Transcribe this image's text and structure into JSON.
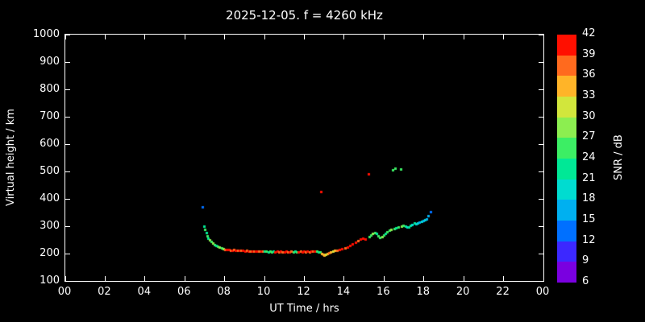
{
  "title": "2025-12-05. f = 4260 kHz",
  "chart_data": {
    "type": "scatter",
    "title": "2025-12-05. f = 4260 kHz",
    "xlabel": "UT Time / hrs",
    "ylabel": "Virtual height / km",
    "xlim": [
      0,
      24
    ],
    "ylim": [
      100,
      1000
    ],
    "grid": false,
    "background": "#000000",
    "marker": "square",
    "marker_size_px": 3,
    "x_tick_values": [
      0,
      2,
      4,
      6,
      8,
      10,
      12,
      14,
      16,
      18,
      20,
      22,
      24
    ],
    "x_tick_labels": [
      "00",
      "02",
      "04",
      "06",
      "08",
      "10",
      "12",
      "14",
      "16",
      "18",
      "20",
      "22",
      "00"
    ],
    "y_tick_values": [
      100,
      200,
      300,
      400,
      500,
      600,
      700,
      800,
      900,
      1000
    ],
    "colorbar": {
      "label": "SNR / dB",
      "min": 6,
      "max": 42,
      "tick_values": [
        6,
        9,
        12,
        15,
        18,
        21,
        24,
        27,
        30,
        33,
        36,
        39,
        42
      ],
      "colors": [
        "#7a00e0",
        "#3c28ff",
        "#0070ff",
        "#00b0f0",
        "#00dcd0",
        "#00e896",
        "#3cee64",
        "#8cee50",
        "#d2e63c",
        "#ffb428",
        "#ff6a1e",
        "#ff0f00"
      ]
    },
    "points_format": [
      "ut_hours",
      "virtual_height_km",
      "snr_db"
    ],
    "points": [
      [
        6.92,
        370,
        13
      ],
      [
        7.0,
        298,
        22
      ],
      [
        7.04,
        286,
        24
      ],
      [
        7.09,
        274,
        21
      ],
      [
        7.14,
        263,
        25
      ],
      [
        7.2,
        255,
        23
      ],
      [
        7.27,
        248,
        27
      ],
      [
        7.34,
        242,
        24
      ],
      [
        7.42,
        236,
        28
      ],
      [
        7.5,
        231,
        25
      ],
      [
        7.59,
        227,
        22
      ],
      [
        7.68,
        224,
        26
      ],
      [
        7.77,
        221,
        29
      ],
      [
        7.86,
        219,
        24
      ],
      [
        7.95,
        217,
        27
      ],
      [
        8.04,
        214,
        37
      ],
      [
        8.13,
        212,
        39
      ],
      [
        8.22,
        213,
        41
      ],
      [
        8.31,
        211,
        38
      ],
      [
        8.4,
        210,
        40
      ],
      [
        8.49,
        212,
        36
      ],
      [
        8.58,
        210,
        41
      ],
      [
        8.67,
        211,
        38
      ],
      [
        8.76,
        209,
        40
      ],
      [
        8.85,
        210,
        37
      ],
      [
        8.94,
        209,
        41
      ],
      [
        9.03,
        208,
        39
      ],
      [
        9.12,
        209,
        36
      ],
      [
        9.21,
        207,
        40
      ],
      [
        9.3,
        208,
        38
      ],
      [
        9.39,
        207,
        41
      ],
      [
        9.48,
        208,
        37
      ],
      [
        9.57,
        206,
        40
      ],
      [
        9.66,
        207,
        39
      ],
      [
        9.75,
        206,
        36
      ],
      [
        9.84,
        207,
        41
      ],
      [
        9.93,
        206,
        38
      ],
      [
        10.02,
        206,
        23
      ],
      [
        10.11,
        207,
        25
      ],
      [
        10.2,
        205,
        22
      ],
      [
        10.29,
        206,
        26
      ],
      [
        10.38,
        205,
        24
      ],
      [
        10.47,
        206,
        21
      ],
      [
        10.56,
        205,
        39
      ],
      [
        10.65,
        206,
        41
      ],
      [
        10.74,
        205,
        38
      ],
      [
        10.83,
        206,
        40
      ],
      [
        10.92,
        205,
        37
      ],
      [
        11.01,
        205,
        41
      ],
      [
        11.1,
        206,
        39
      ],
      [
        11.19,
        205,
        36
      ],
      [
        11.28,
        205,
        40
      ],
      [
        11.37,
        206,
        38
      ],
      [
        11.46,
        205,
        24
      ],
      [
        11.55,
        206,
        22
      ],
      [
        11.64,
        205,
        26
      ],
      [
        11.73,
        205,
        40
      ],
      [
        11.82,
        206,
        38
      ],
      [
        11.91,
        205,
        41
      ],
      [
        12.0,
        206,
        39
      ],
      [
        12.09,
        205,
        37
      ],
      [
        12.18,
        206,
        41
      ],
      [
        12.27,
        205,
        38
      ],
      [
        12.36,
        206,
        40
      ],
      [
        12.45,
        206,
        36
      ],
      [
        12.54,
        207,
        39
      ],
      [
        12.63,
        206,
        25
      ],
      [
        12.72,
        205,
        23
      ],
      [
        12.81,
        203,
        26
      ],
      [
        12.85,
        425,
        40
      ],
      [
        12.9,
        199,
        34
      ],
      [
        12.96,
        195,
        33
      ],
      [
        13.03,
        193,
        35
      ],
      [
        13.11,
        195,
        32
      ],
      [
        13.19,
        198,
        34
      ],
      [
        13.27,
        201,
        36
      ],
      [
        13.35,
        204,
        33
      ],
      [
        13.44,
        207,
        31
      ],
      [
        13.54,
        209,
        34
      ],
      [
        13.66,
        211,
        37
      ],
      [
        13.79,
        213,
        39
      ],
      [
        13.92,
        215,
        41
      ],
      [
        14.05,
        218,
        38
      ],
      [
        14.18,
        222,
        40
      ],
      [
        14.31,
        227,
        41
      ],
      [
        14.44,
        233,
        39
      ],
      [
        14.57,
        240,
        40
      ],
      [
        14.7,
        246,
        38
      ],
      [
        14.83,
        251,
        41
      ],
      [
        14.96,
        253,
        39
      ],
      [
        15.08,
        251,
        40
      ],
      [
        15.22,
        490,
        40
      ],
      [
        15.28,
        259,
        26
      ],
      [
        15.37,
        266,
        24
      ],
      [
        15.46,
        272,
        27
      ],
      [
        15.55,
        276,
        25
      ],
      [
        15.64,
        271,
        22
      ],
      [
        15.73,
        263,
        26
      ],
      [
        15.82,
        258,
        24
      ],
      [
        15.91,
        261,
        27
      ],
      [
        16.0,
        267,
        25
      ],
      [
        16.09,
        273,
        22
      ],
      [
        16.18,
        278,
        26
      ],
      [
        16.27,
        283,
        24
      ],
      [
        16.36,
        287,
        27
      ],
      [
        16.45,
        505,
        26
      ],
      [
        16.57,
        509,
        24
      ],
      [
        16.54,
        289,
        25
      ],
      [
        16.63,
        293,
        22
      ],
      [
        16.72,
        296,
        26
      ],
      [
        16.84,
        506,
        25
      ],
      [
        16.9,
        299,
        27
      ],
      [
        16.99,
        301,
        24
      ],
      [
        17.08,
        298,
        22
      ],
      [
        17.17,
        295,
        20
      ],
      [
        17.26,
        297,
        23
      ],
      [
        17.35,
        301,
        21
      ],
      [
        17.44,
        305,
        19
      ],
      [
        17.53,
        309,
        21
      ],
      [
        17.62,
        307,
        18
      ],
      [
        17.71,
        311,
        20
      ],
      [
        17.8,
        314,
        17
      ],
      [
        17.89,
        317,
        19
      ],
      [
        17.98,
        319,
        16
      ],
      [
        18.07,
        322,
        18
      ],
      [
        18.16,
        326,
        15
      ],
      [
        18.25,
        336,
        17
      ],
      [
        18.34,
        351,
        14
      ]
    ]
  }
}
